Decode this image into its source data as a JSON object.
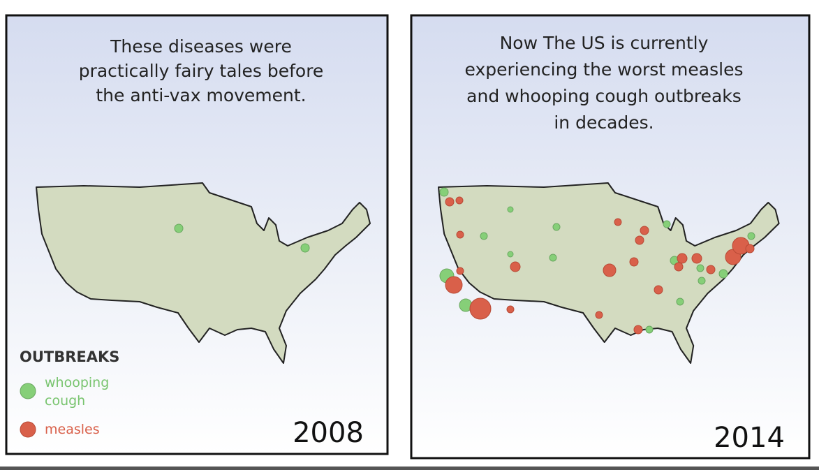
{
  "panels": [
    {
      "caption": [
        "These diseases were",
        "practically fairy tales before",
        "the anti-vax movement."
      ],
      "year": "2008"
    },
    {
      "caption": [
        "Now The US is currently",
        "experiencing the worst measles",
        "and whooping cough outbreaks",
        "in decades."
      ],
      "year": "2014"
    }
  ],
  "legend": {
    "title": "OUTBREAKS",
    "items": [
      {
        "label": [
          "whooping",
          "cough"
        ]
      },
      {
        "label": [
          "measles"
        ]
      }
    ]
  }
}
